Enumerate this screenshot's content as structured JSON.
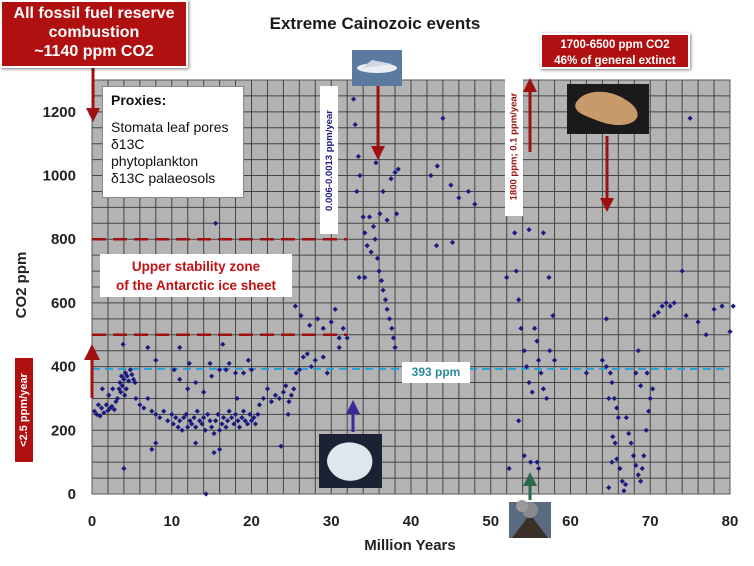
{
  "chart_data": {
    "type": "scatter",
    "title": "Extreme Cainozoic events",
    "xlabel": "Million Years",
    "ylabel": "CO2 ppm",
    "xlim": [
      0,
      80
    ],
    "ylim": [
      0,
      1300
    ],
    "xticks": [
      "0",
      "10",
      "20",
      "30",
      "40",
      "50",
      "60",
      "70",
      "80"
    ],
    "yticks": [
      "0",
      "200",
      "400",
      "600",
      "800",
      "1000",
      "1200"
    ],
    "grid": true,
    "grid_color": "#444444",
    "plot_bg": "#b3b3b3",
    "point_color": "#1a1a80",
    "reference_lines": [
      {
        "label": "393 ppm",
        "y": 393,
        "color": "#2a9fd8",
        "style": "dashed"
      },
      {
        "y": 800,
        "x_end": 32,
        "color": "#a01010",
        "style": "dashed"
      },
      {
        "y": 500,
        "x_end": 32,
        "color": "#a01010",
        "style": "dashed"
      }
    ],
    "points": [
      [
        0.3,
        260
      ],
      [
        0.6,
        250
      ],
      [
        0.8,
        280
      ],
      [
        1,
        245
      ],
      [
        1.2,
        270
      ],
      [
        1.5,
        255
      ],
      [
        1.8,
        280
      ],
      [
        2,
        262
      ],
      [
        2.3,
        270
      ],
      [
        2.5,
        275
      ],
      [
        2.8,
        265
      ],
      [
        3,
        290
      ],
      [
        3.2,
        300
      ],
      [
        3.4,
        330
      ],
      [
        3.5,
        350
      ],
      [
        3.7,
        370
      ],
      [
        3.8,
        340
      ],
      [
        4,
        360
      ],
      [
        4.2,
        380
      ],
      [
        4.4,
        370
      ],
      [
        4.6,
        355
      ],
      [
        4.8,
        390
      ],
      [
        5,
        375
      ],
      [
        5.2,
        360
      ],
      [
        5.4,
        350
      ],
      [
        3.6,
        320
      ],
      [
        4.1,
        310
      ],
      [
        1.3,
        330
      ],
      [
        2.1,
        310
      ],
      [
        2.6,
        330
      ],
      [
        3.9,
        470
      ],
      [
        4.3,
        330
      ],
      [
        5.5,
        300
      ],
      [
        6,
        280
      ],
      [
        6.5,
        270
      ],
      [
        7,
        300
      ],
      [
        7.5,
        260
      ],
      [
        8,
        250
      ],
      [
        8.5,
        240
      ],
      [
        9,
        260
      ],
      [
        9.5,
        230
      ],
      [
        10,
        250
      ],
      [
        10.2,
        220
      ],
      [
        10.5,
        240
      ],
      [
        10.8,
        210
      ],
      [
        11,
        230
      ],
      [
        11.3,
        200
      ],
      [
        11.5,
        240
      ],
      [
        11.8,
        250
      ],
      [
        12,
        210
      ],
      [
        12.3,
        230
      ],
      [
        12.5,
        220
      ],
      [
        12.8,
        240
      ],
      [
        13,
        210
      ],
      [
        13.2,
        260
      ],
      [
        13.5,
        230
      ],
      [
        13.8,
        220
      ],
      [
        14,
        240
      ],
      [
        14.2,
        200
      ],
      [
        14.5,
        250
      ],
      [
        14.8,
        230
      ],
      [
        15,
        210
      ],
      [
        15.3,
        190
      ],
      [
        15.5,
        230
      ],
      [
        15.8,
        250
      ],
      [
        16,
        200
      ],
      [
        16.3,
        220
      ],
      [
        16.5,
        240
      ],
      [
        16.8,
        210
      ],
      [
        17,
        230
      ],
      [
        17.2,
        260
      ],
      [
        17.5,
        240
      ],
      [
        17.8,
        220
      ],
      [
        18,
        250
      ],
      [
        18.3,
        230
      ],
      [
        18.5,
        210
      ],
      [
        18.8,
        240
      ],
      [
        19,
        260
      ],
      [
        19.2,
        230
      ],
      [
        19.5,
        220
      ],
      [
        19.8,
        250
      ],
      [
        20,
        230
      ],
      [
        20.3,
        240
      ],
      [
        20.5,
        220
      ],
      [
        20.8,
        250
      ],
      [
        10.3,
        390
      ],
      [
        11,
        360
      ],
      [
        12,
        330
      ],
      [
        13,
        350
      ],
      [
        14,
        320
      ],
      [
        15,
        370
      ],
      [
        16,
        390
      ],
      [
        16.4,
        470
      ],
      [
        16.8,
        390
      ],
      [
        17.2,
        410
      ],
      [
        18,
        380
      ],
      [
        19,
        380
      ],
      [
        19.6,
        420
      ],
      [
        20,
        390
      ],
      [
        7,
        460
      ],
      [
        8,
        420
      ],
      [
        11,
        460
      ],
      [
        12.2,
        410
      ],
      [
        14.8,
        410
      ],
      [
        15.5,
        850
      ],
      [
        18.2,
        300
      ],
      [
        21,
        280
      ],
      [
        21.5,
        300
      ],
      [
        22,
        330
      ],
      [
        22.5,
        290
      ],
      [
        23,
        310
      ],
      [
        23.5,
        300
      ],
      [
        24,
        320
      ],
      [
        24.3,
        340
      ],
      [
        24.7,
        290
      ],
      [
        25,
        310
      ],
      [
        25.3,
        330
      ],
      [
        25.6,
        380
      ],
      [
        26,
        390
      ],
      [
        26.5,
        430
      ],
      [
        27,
        440
      ],
      [
        27.5,
        400
      ],
      [
        28,
        420
      ],
      [
        25.5,
        590
      ],
      [
        26.2,
        560
      ],
      [
        27.3,
        530
      ],
      [
        28.3,
        550
      ],
      [
        29,
        520
      ],
      [
        30,
        540
      ],
      [
        30.5,
        580
      ],
      [
        31,
        490
      ],
      [
        31.5,
        520
      ],
      [
        29,
        430
      ],
      [
        29.5,
        380
      ],
      [
        32,
        490
      ],
      [
        31,
        460
      ],
      [
        4,
        80
      ],
      [
        8,
        160
      ],
      [
        7.5,
        140
      ],
      [
        13,
        160
      ],
      [
        15.3,
        130
      ],
      [
        16,
        140
      ],
      [
        14.3,
        0
      ],
      [
        24.6,
        250
      ],
      [
        23.7,
        150
      ],
      [
        32.8,
        1240
      ],
      [
        33,
        1160
      ],
      [
        33.4,
        1060
      ],
      [
        33.6,
        1000
      ],
      [
        33.2,
        950
      ],
      [
        34,
        870
      ],
      [
        34.2,
        820
      ],
      [
        34.5,
        780
      ],
      [
        35,
        760
      ],
      [
        35.3,
        840
      ],
      [
        35.5,
        800
      ],
      [
        35.8,
        740
      ],
      [
        36,
        700
      ],
      [
        36.3,
        670
      ],
      [
        36.5,
        640
      ],
      [
        36.8,
        610
      ],
      [
        37,
        580
      ],
      [
        37.3,
        550
      ],
      [
        37.6,
        520
      ],
      [
        37.8,
        490
      ],
      [
        38,
        460
      ],
      [
        38.2,
        880
      ],
      [
        38.4,
        1020
      ],
      [
        37.5,
        990
      ],
      [
        36.5,
        950
      ],
      [
        34.8,
        870
      ],
      [
        33.5,
        680
      ],
      [
        34.2,
        680
      ],
      [
        35.6,
        1040
      ],
      [
        36.1,
        880
      ],
      [
        37,
        860
      ],
      [
        38,
        1010
      ],
      [
        42.5,
        1000
      ],
      [
        43.3,
        1030
      ],
      [
        44,
        1180
      ],
      [
        45,
        970
      ],
      [
        46,
        930
      ],
      [
        47.2,
        950
      ],
      [
        48,
        910
      ],
      [
        43.2,
        780
      ],
      [
        45.2,
        790
      ],
      [
        52,
        680
      ],
      [
        53,
        820
      ],
      [
        53.2,
        700
      ],
      [
        53.5,
        610
      ],
      [
        53.8,
        520
      ],
      [
        54.2,
        450
      ],
      [
        54.5,
        400
      ],
      [
        54.8,
        350
      ],
      [
        55.2,
        320
      ],
      [
        55.5,
        520
      ],
      [
        55.8,
        480
      ],
      [
        56,
        420
      ],
      [
        56.3,
        380
      ],
      [
        56.6,
        330
      ],
      [
        57,
        300
      ],
      [
        57.4,
        450
      ],
      [
        57.8,
        560
      ],
      [
        58,
        420
      ],
      [
        54.8,
        830
      ],
      [
        56.6,
        820
      ],
      [
        53.5,
        230
      ],
      [
        54.2,
        120
      ],
      [
        55,
        100
      ],
      [
        55.8,
        100
      ],
      [
        56,
        80
      ],
      [
        52.3,
        80
      ],
      [
        57.3,
        680
      ],
      [
        62,
        380
      ],
      [
        64,
        420
      ],
      [
        64.5,
        400
      ],
      [
        65,
        380
      ],
      [
        65.2,
        350
      ],
      [
        65.5,
        300
      ],
      [
        65.8,
        270
      ],
      [
        66,
        240
      ],
      [
        65.3,
        180
      ],
      [
        65.6,
        160
      ],
      [
        65.8,
        110
      ],
      [
        66.2,
        80
      ],
      [
        66.5,
        40
      ],
      [
        66.7,
        10
      ],
      [
        67,
        240
      ],
      [
        67.3,
        190
      ],
      [
        67.6,
        160
      ],
      [
        67.9,
        120
      ],
      [
        68.2,
        90
      ],
      [
        68.5,
        60
      ],
      [
        68.8,
        40
      ],
      [
        69,
        80
      ],
      [
        69.2,
        120
      ],
      [
        69.5,
        200
      ],
      [
        69.8,
        260
      ],
      [
        70,
        300
      ],
      [
        70.3,
        330
      ],
      [
        68.2,
        380
      ],
      [
        68.5,
        450
      ],
      [
        68.8,
        340
      ],
      [
        64.5,
        550
      ],
      [
        64.8,
        300
      ],
      [
        69.6,
        380
      ],
      [
        70.5,
        560
      ],
      [
        71,
        570
      ],
      [
        71.5,
        590
      ],
      [
        72,
        600
      ],
      [
        72.5,
        590
      ],
      [
        73,
        600
      ],
      [
        74,
        700
      ],
      [
        74.5,
        560
      ],
      [
        75,
        1180
      ],
      [
        76,
        540
      ],
      [
        77,
        500
      ],
      [
        78,
        580
      ],
      [
        79,
        590
      ],
      [
        80,
        510
      ],
      [
        80.4,
        590
      ],
      [
        64.8,
        20
      ],
      [
        65.2,
        100
      ],
      [
        66.9,
        30
      ]
    ]
  },
  "annotations": {
    "fossil_box": [
      "All fossil fuel reserve",
      "combustion",
      "~1140 ppm CO2"
    ],
    "extinct_box": [
      "1700-6500 ppm CO2",
      "46% of general extinct"
    ],
    "rate_red": "<2.5 ppm/year",
    "rate_blue": "0.006-0.0013 ppm/year",
    "rate_1800": "1800 ppm; 0.1 ppm/year",
    "proxies_header": "Proxies:",
    "proxies": [
      "Stomata leaf pores",
      "δ13C phytoplankton",
      "δ13C palaeosols"
    ],
    "stability": [
      "Upper stability zone",
      "of the Antarctic ice sheet"
    ],
    "current": "393 ppm"
  }
}
